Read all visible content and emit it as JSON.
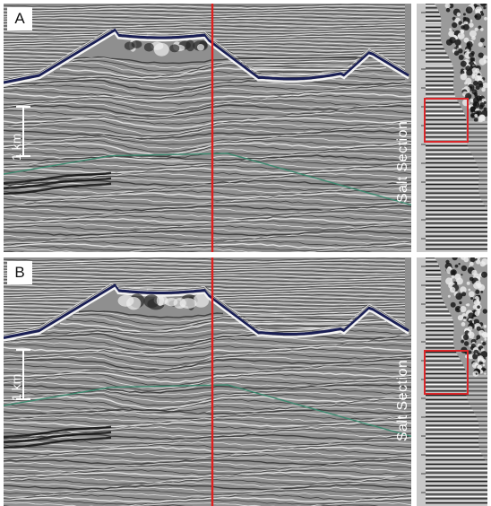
{
  "panels": [
    {
      "label": "A",
      "scale_label": "1 km",
      "section_label": "Salt Section"
    },
    {
      "label": "B",
      "scale_label": "1 km",
      "section_label": "Salt Section"
    }
  ],
  "colors": {
    "marker_line": "#e0201f",
    "box": "#d9262a",
    "horizon": "#3d8a70",
    "salt_top": "#1a1f55"
  }
}
